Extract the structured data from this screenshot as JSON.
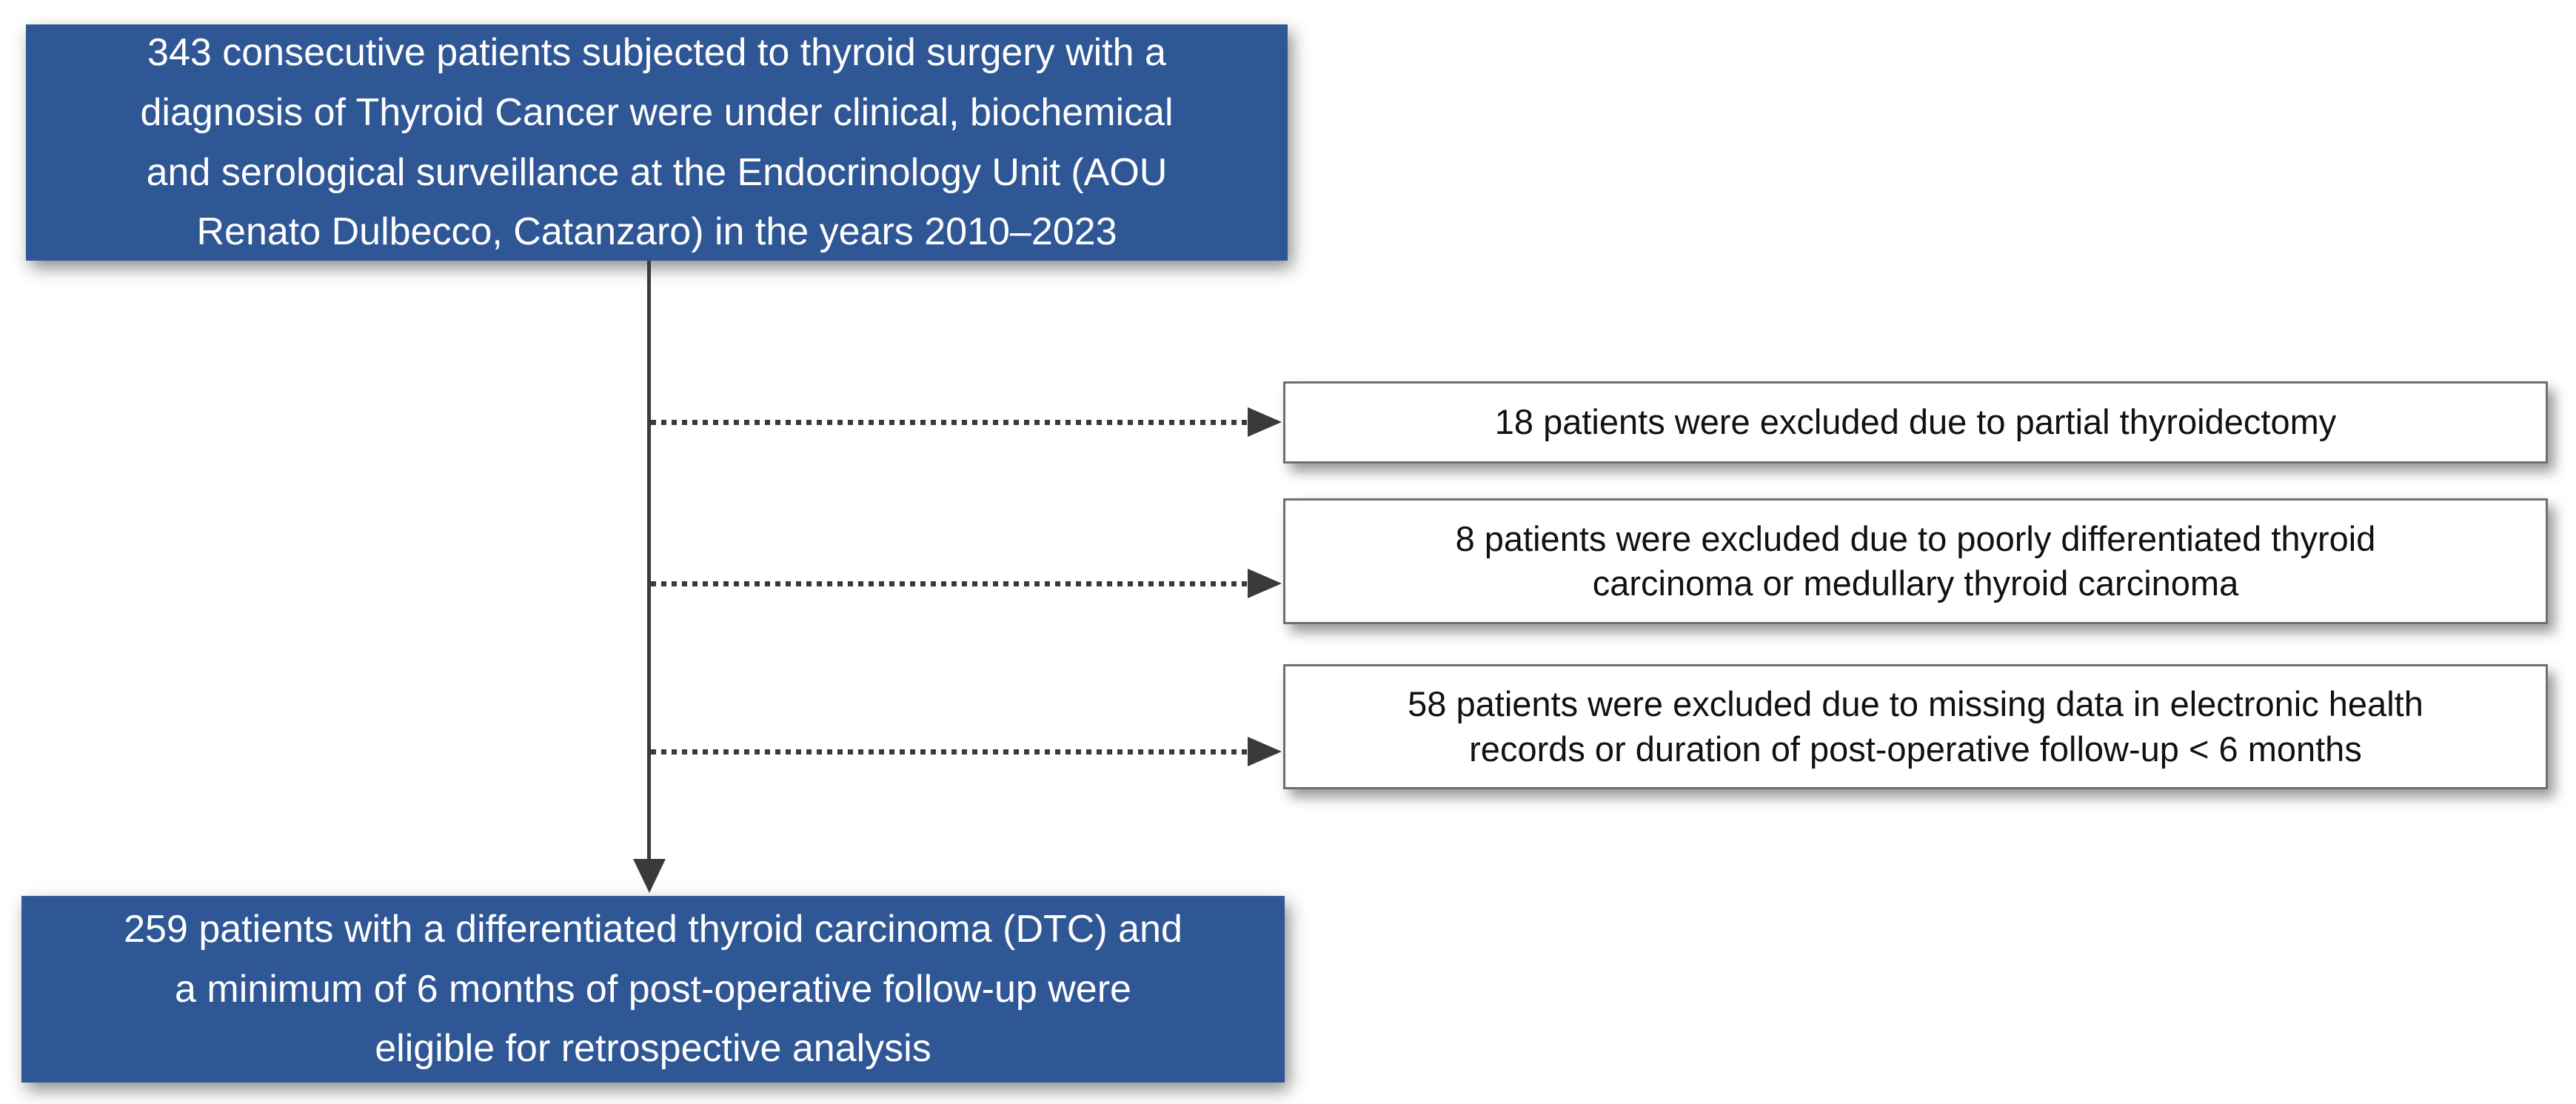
{
  "figure": {
    "type": "patient-flow-diagram",
    "colors": {
      "box_blue": "#2F5796",
      "box_white": "#FFFFFF",
      "text_on_blue": "#FFFFFF",
      "text_on_white": "#111111",
      "white_box_border": "#6F6F6F",
      "arrow": "#3A3A3A"
    },
    "enrollment_box": {
      "count": 343,
      "lines": [
        "343 consecutive patients subjected to thyroid surgery with a",
        "diagnosis of Thyroid Cancer were under clinical, biochemical",
        "and serological surveillance at the Endocrinology Unit (AOU",
        "Renato Dulbecco, Catanzaro) in the years 2010–2023"
      ]
    },
    "exclusion_boxes": [
      {
        "count": 18,
        "lines": [
          "18 patients were excluded due to partial thyroidectomy"
        ]
      },
      {
        "count": 8,
        "lines": [
          "8 patients were excluded due to poorly differentiated thyroid",
          "carcinoma or medullary thyroid carcinoma"
        ]
      },
      {
        "count": 58,
        "lines": [
          "58 patients were excluded due to missing data in electronic health",
          "records or duration of post-operative follow-up < 6 months"
        ]
      }
    ],
    "eligible_box": {
      "count": 259,
      "lines": [
        "259 patients with a differentiated thyroid carcinoma (DTC) and",
        "a minimum of 6 months of post-operative follow-up were",
        "eligible for retrospective analysis"
      ]
    }
  }
}
